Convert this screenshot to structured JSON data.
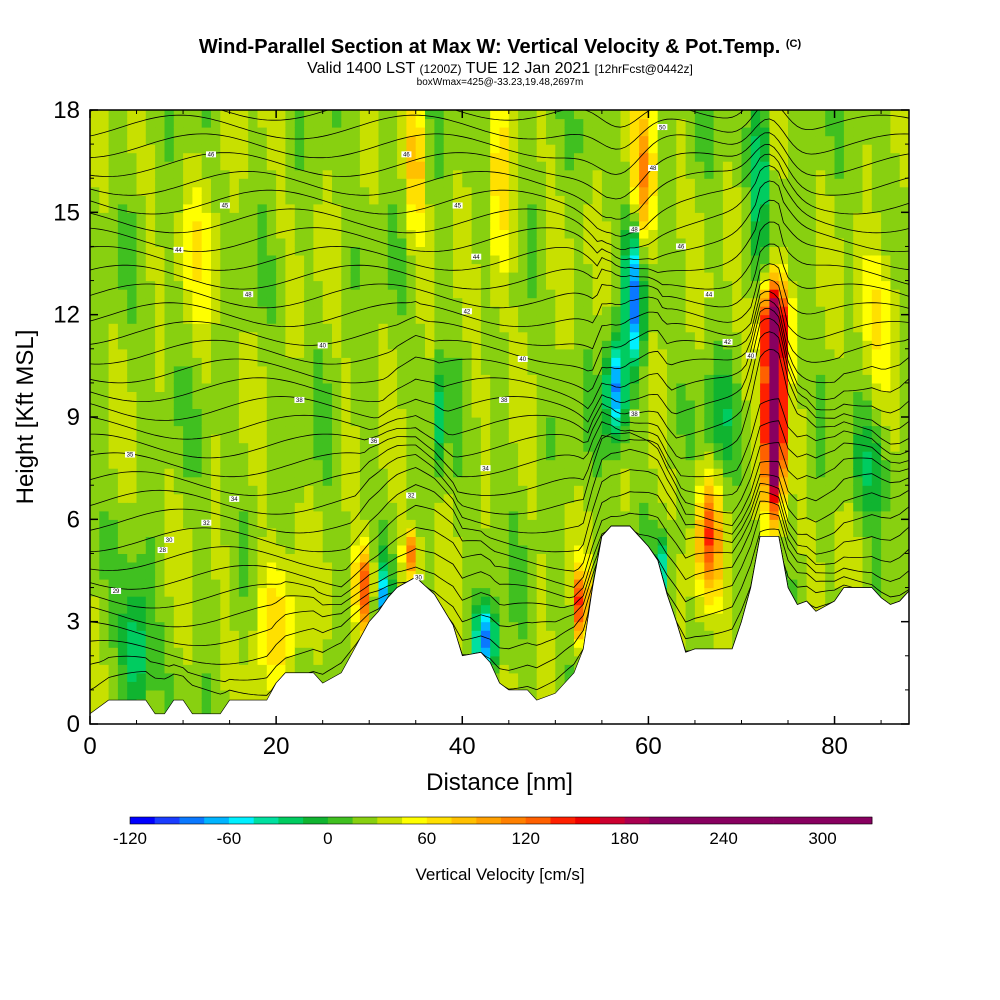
{
  "title": {
    "main": "Wind-Parallel Section at Max W: Vertical Velocity & Pot.Temp.",
    "copyright": "(C)",
    "valid_prefix": "Valid 1400 LST",
    "valid_z": "(1200Z)",
    "valid_date": "TUE 12 Jan 2021",
    "forecast": "[12hrFcst@0442z]",
    "box_info": "boxWmax=425@-33.23,19.48,2697m"
  },
  "chart_data": {
    "type": "heatmap",
    "xlabel": "Distance [nm]",
    "ylabel": "Height [Kft MSL]",
    "xlim": [
      0,
      88
    ],
    "ylim": [
      0,
      18
    ],
    "x_ticks": [
      0,
      20,
      40,
      60,
      80
    ],
    "y_ticks": [
      0,
      3,
      6,
      9,
      12,
      15,
      18
    ],
    "colorbar": {
      "label": "Vertical Velocity [cm/s]",
      "min": -120,
      "max": 330,
      "step": 15,
      "tick_values": [
        -120,
        -60,
        0,
        60,
        120,
        180,
        240,
        300
      ],
      "colors": [
        "#0000ff",
        "#1a3cff",
        "#0a78ff",
        "#00b4ff",
        "#00f0ff",
        "#00e0a0",
        "#00cc60",
        "#10b430",
        "#40c020",
        "#88d010",
        "#c8e000",
        "#ffff00",
        "#ffe000",
        "#ffc000",
        "#ffa000",
        "#ff8000",
        "#ff6000",
        "#ff2000",
        "#ee0000",
        "#cc0030",
        "#aa0050",
        "#880060"
      ]
    },
    "terrain_top_kft": [
      [
        0,
        0.3
      ],
      [
        2,
        0.7
      ],
      [
        6,
        0.7
      ],
      [
        7,
        0.3
      ],
      [
        8,
        0.3
      ],
      [
        9,
        0.7
      ],
      [
        10,
        0.7
      ],
      [
        11,
        0.3
      ],
      [
        14,
        0.3
      ],
      [
        15,
        0.7
      ],
      [
        19,
        0.7
      ],
      [
        20,
        1.2
      ],
      [
        21,
        1.5
      ],
      [
        24,
        1.5
      ],
      [
        25,
        1.2
      ],
      [
        27,
        1.5
      ],
      [
        28,
        2.0
      ],
      [
        30,
        3.0
      ],
      [
        31,
        3.3
      ],
      [
        32,
        3.7
      ],
      [
        33,
        4.0
      ],
      [
        35,
        4.3
      ],
      [
        37,
        3.8
      ],
      [
        39,
        2.9
      ],
      [
        40,
        2.0
      ],
      [
        42,
        2.1
      ],
      [
        43,
        1.8
      ],
      [
        44,
        1.2
      ],
      [
        45,
        1.0
      ],
      [
        47,
        1.0
      ],
      [
        48,
        0.7
      ],
      [
        50,
        0.9
      ],
      [
        52,
        1.5
      ],
      [
        53,
        2.2
      ],
      [
        54,
        4.0
      ],
      [
        55,
        5.5
      ],
      [
        56,
        5.8
      ],
      [
        58,
        5.8
      ],
      [
        59,
        5.5
      ],
      [
        60,
        5.2
      ],
      [
        61,
        4.8
      ],
      [
        62,
        3.8
      ],
      [
        63,
        3.0
      ],
      [
        64,
        2.1
      ],
      [
        65,
        2.2
      ],
      [
        69,
        2.2
      ],
      [
        70,
        3.0
      ],
      [
        71,
        4.0
      ],
      [
        72,
        5.5
      ],
      [
        74,
        5.5
      ],
      [
        75,
        4.0
      ],
      [
        76,
        3.5
      ],
      [
        77,
        3.6
      ],
      [
        78,
        3.3
      ],
      [
        80,
        3.6
      ],
      [
        81,
        4.0
      ],
      [
        84,
        4.0
      ],
      [
        85,
        3.7
      ],
      [
        86,
        3.5
      ],
      [
        87,
        3.6
      ],
      [
        88,
        3.9
      ]
    ],
    "w_features": [
      {
        "x": 73.5,
        "z": 9.0,
        "sx": 1.0,
        "sz": 2.6,
        "w": 310
      },
      {
        "x": 73.5,
        "z": 11.8,
        "sx": 1.5,
        "sz": 1.2,
        "w": 150
      },
      {
        "x": 66.5,
        "z": 5.5,
        "sx": 1.3,
        "sz": 1.7,
        "w": 100
      },
      {
        "x": 29.5,
        "z": 4.0,
        "sx": 1.0,
        "sz": 1.2,
        "w": 110
      },
      {
        "x": 52.8,
        "z": 3.5,
        "sx": 0.7,
        "sz": 1.0,
        "w": 120
      },
      {
        "x": 34.5,
        "z": 5.0,
        "sx": 0.8,
        "sz": 0.7,
        "w": 90
      },
      {
        "x": 59.5,
        "z": 16.0,
        "sx": 1.2,
        "sz": 2.2,
        "w": 75
      },
      {
        "x": 56.5,
        "z": 9.8,
        "sx": 1.1,
        "sz": 1.5,
        "w": -110
      },
      {
        "x": 58.5,
        "z": 12.5,
        "sx": 1.0,
        "sz": 2.0,
        "w": -100
      },
      {
        "x": 72.0,
        "z": 16.5,
        "sx": 1.0,
        "sz": 2.5,
        "w": -60
      },
      {
        "x": 42.5,
        "z": 2.5,
        "sx": 1.2,
        "sz": 1.0,
        "w": -110
      },
      {
        "x": 31.5,
        "z": 3.5,
        "sx": 0.9,
        "sz": 1.2,
        "w": -80
      },
      {
        "x": 37.5,
        "z": 9.0,
        "sx": 0.6,
        "sz": 1.5,
        "w": -50
      },
      {
        "x": 61.5,
        "z": 4.5,
        "sx": 0.8,
        "sz": 1.0,
        "w": -60
      },
      {
        "x": 5.0,
        "z": 2.0,
        "sx": 1.5,
        "sz": 2.0,
        "w": -60
      },
      {
        "x": 35.0,
        "z": 16.5,
        "sx": 1.0,
        "sz": 2.0,
        "w": 60
      },
      {
        "x": 44.0,
        "z": 15.0,
        "sx": 1.2,
        "sz": 3.0,
        "w": 45
      },
      {
        "x": 20.0,
        "z": 3.0,
        "sx": 2.5,
        "sz": 1.8,
        "w": 45
      },
      {
        "x": 85.0,
        "z": 12.0,
        "sx": 2.5,
        "sz": 2.0,
        "w": 35
      },
      {
        "x": 84.0,
        "z": 7.5,
        "sx": 2.0,
        "sz": 1.5,
        "w": -40
      },
      {
        "x": 12.0,
        "z": 14.0,
        "sx": 2.0,
        "sz": 2.5,
        "w": 25
      },
      {
        "x": 68.0,
        "z": 9.0,
        "sx": 2.0,
        "sz": 1.5,
        "w": -30
      }
    ],
    "isentrope_labels": [
      {
        "x": 61.5,
        "z": 17.5,
        "text": "50"
      },
      {
        "x": 13,
        "z": 16.7,
        "text": "46"
      },
      {
        "x": 34,
        "z": 16.7,
        "text": "46"
      },
      {
        "x": 60.5,
        "z": 16.3,
        "text": "48"
      },
      {
        "x": 14.5,
        "z": 15.2,
        "text": "45"
      },
      {
        "x": 39.5,
        "z": 15.2,
        "text": "45"
      },
      {
        "x": 58.5,
        "z": 14.5,
        "text": "48"
      },
      {
        "x": 9.5,
        "z": 13.9,
        "text": "44"
      },
      {
        "x": 41.5,
        "z": 13.7,
        "text": "44"
      },
      {
        "x": 63.5,
        "z": 14.0,
        "text": "46"
      },
      {
        "x": 17,
        "z": 12.6,
        "text": "48"
      },
      {
        "x": 40.5,
        "z": 12.1,
        "text": "42"
      },
      {
        "x": 66.5,
        "z": 12.6,
        "text": "44"
      },
      {
        "x": 25,
        "z": 11.1,
        "text": "40"
      },
      {
        "x": 46.5,
        "z": 10.7,
        "text": "40"
      },
      {
        "x": 68.5,
        "z": 11.2,
        "text": "42"
      },
      {
        "x": 71,
        "z": 10.8,
        "text": "40"
      },
      {
        "x": 22.5,
        "z": 9.5,
        "text": "38"
      },
      {
        "x": 44.5,
        "z": 9.5,
        "text": "38"
      },
      {
        "x": 58.5,
        "z": 9.1,
        "text": "38"
      },
      {
        "x": 30.5,
        "z": 8.3,
        "text": "36"
      },
      {
        "x": 4.3,
        "z": 7.9,
        "text": "35"
      },
      {
        "x": 42.5,
        "z": 7.5,
        "text": "34"
      },
      {
        "x": 15.5,
        "z": 6.6,
        "text": "34"
      },
      {
        "x": 34.5,
        "z": 6.7,
        "text": "32"
      },
      {
        "x": 12.5,
        "z": 5.9,
        "text": "32"
      },
      {
        "x": 8.5,
        "z": 5.4,
        "text": "30"
      },
      {
        "x": 7.8,
        "z": 5.1,
        "text": "28"
      },
      {
        "x": 2.8,
        "z": 3.9,
        "text": "29"
      },
      {
        "x": 35.3,
        "z": 4.3,
        "text": "30"
      }
    ]
  }
}
